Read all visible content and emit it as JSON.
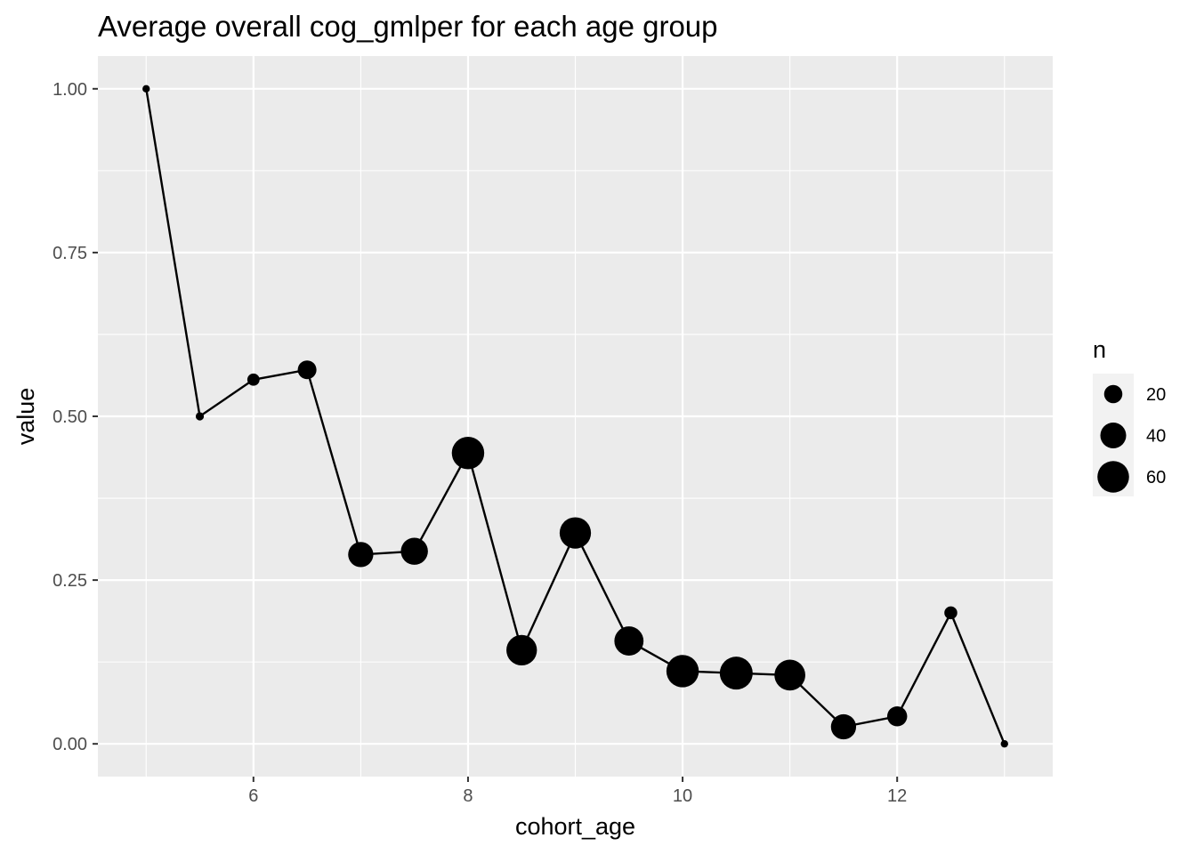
{
  "chart_data": {
    "type": "scatter",
    "title": "Average overall cog_gmlper for each age group",
    "xlabel": "cohort_age",
    "ylabel": "value",
    "xlim": [
      4.55,
      13.45
    ],
    "ylim": [
      -0.05,
      1.05
    ],
    "x_ticks": [
      6,
      8,
      10,
      12
    ],
    "x_tick_labels": [
      "6",
      "8",
      "10",
      "12"
    ],
    "y_ticks": [
      0,
      0.25,
      0.5,
      0.75,
      1.0
    ],
    "y_tick_labels": [
      "0.00",
      "0.25",
      "0.50",
      "0.75",
      "1.00"
    ],
    "grid": true,
    "connect_points": true,
    "size_legend": {
      "title": "n",
      "placement": "right",
      "entries": [
        {
          "label": "20",
          "n": 20
        },
        {
          "label": "40",
          "n": 40
        },
        {
          "label": "60",
          "n": 60
        }
      ]
    },
    "points": [
      {
        "x": 5.0,
        "y": 1.0,
        "n": 1
      },
      {
        "x": 5.5,
        "y": 0.5,
        "n": 4
      },
      {
        "x": 6.0,
        "y": 0.556,
        "n": 9
      },
      {
        "x": 6.5,
        "y": 0.571,
        "n": 21
      },
      {
        "x": 7.0,
        "y": 0.289,
        "n": 38
      },
      {
        "x": 7.5,
        "y": 0.294,
        "n": 44
      },
      {
        "x": 8.0,
        "y": 0.444,
        "n": 63
      },
      {
        "x": 8.5,
        "y": 0.143,
        "n": 56
      },
      {
        "x": 9.0,
        "y": 0.322,
        "n": 59
      },
      {
        "x": 9.5,
        "y": 0.157,
        "n": 51
      },
      {
        "x": 10.0,
        "y": 0.111,
        "n": 63
      },
      {
        "x": 10.5,
        "y": 0.108,
        "n": 65
      },
      {
        "x": 11.0,
        "y": 0.105,
        "n": 57
      },
      {
        "x": 11.5,
        "y": 0.026,
        "n": 38
      },
      {
        "x": 12.0,
        "y": 0.042,
        "n": 24
      },
      {
        "x": 12.5,
        "y": 0.2,
        "n": 10
      },
      {
        "x": 13.0,
        "y": 0.0,
        "n": 1
      }
    ],
    "colors": {
      "panel": "#ebebeb",
      "grid": "#ffffff",
      "point": "#000000",
      "line": "#000000"
    }
  }
}
